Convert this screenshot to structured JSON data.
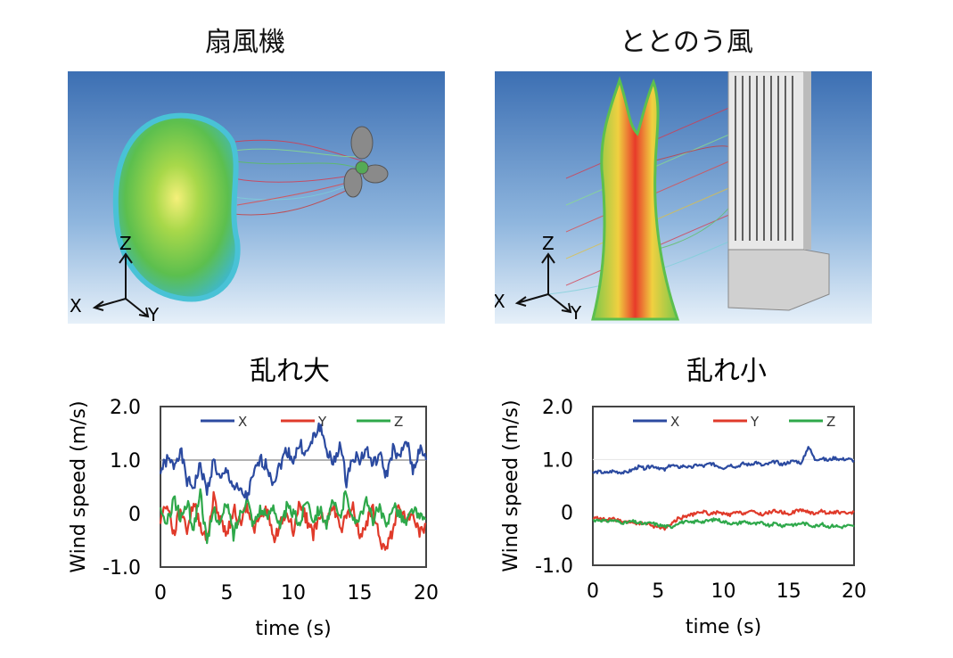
{
  "panels": [
    {
      "title": "扇風機",
      "axes": {
        "z": "Z",
        "x": "X",
        "y": "Y"
      }
    },
    {
      "title": "ととのう風",
      "axes": {
        "z": "Z",
        "x": "X",
        "y": "Y"
      }
    }
  ],
  "colors": {
    "X": "#2b4aa0",
    "Y": "#e03a2a",
    "Z": "#2ea84a"
  },
  "chart_data": [
    {
      "type": "line",
      "title": "乱れ大",
      "xlabel": "time (s)",
      "ylabel": "Wind speed (m/s)",
      "xlim": [
        0,
        20
      ],
      "ylim": [
        -1.0,
        2.0
      ],
      "xticks": [
        "0",
        "5",
        "10",
        "15",
        "20"
      ],
      "yticks": [
        "2.0",
        "1.0",
        "0",
        "-1.0"
      ],
      "grid": "horizontal line at 1.0",
      "legend": "top",
      "x_step": 0.5,
      "series": [
        {
          "name": "X",
          "values": [
            0.8,
            1.0,
            0.9,
            1.2,
            0.6,
            0.5,
            0.9,
            0.4,
            1.0,
            0.6,
            0.8,
            0.5,
            0.4,
            0.3,
            0.7,
            1.0,
            0.9,
            0.6,
            0.9,
            1.2,
            1.0,
            1.3,
            1.1,
            1.4,
            1.65,
            1.2,
            0.9,
            1.3,
            0.6,
            1.1,
            1.0,
            1.2,
            0.9,
            1.1,
            0.7,
            1.2,
            1.0,
            1.4,
            0.8,
            1.2,
            1.0
          ]
        },
        {
          "name": "Y",
          "values": [
            -0.1,
            0.2,
            -0.4,
            0.1,
            -0.3,
            0.2,
            -0.2,
            -0.5,
            0.3,
            -0.1,
            -0.4,
            0.1,
            -0.2,
            0.2,
            -0.3,
            -0.1,
            0.1,
            -0.5,
            -0.2,
            0.0,
            -0.3,
            0.2,
            -0.1,
            -0.4,
            0.0,
            -0.2,
            0.2,
            -0.3,
            -0.1,
            0.1,
            -0.4,
            -0.2,
            0.1,
            -0.5,
            -0.7,
            -0.3,
            0.2,
            -0.2,
            0.1,
            -0.4,
            -0.2
          ]
        },
        {
          "name": "Z",
          "values": [
            0.0,
            -0.2,
            0.3,
            -0.1,
            0.2,
            -0.3,
            0.45,
            -0.6,
            0.1,
            -0.2,
            0.2,
            -0.4,
            0.0,
            0.3,
            -0.2,
            0.1,
            -0.1,
            0.2,
            -0.3,
            0.1,
            0.0,
            -0.2,
            0.3,
            -0.1,
            0.1,
            -0.2,
            0.2,
            -0.1,
            0.45,
            -0.2,
            0.0,
            0.2,
            -0.1,
            0.1,
            -0.3,
            0.2,
            0.0,
            -0.2,
            0.1,
            -0.1,
            -0.1
          ]
        }
      ]
    },
    {
      "type": "line",
      "title": "乱れ小",
      "xlabel": "time (s)",
      "ylabel": "Wind speed (m/s)",
      "xlim": [
        0,
        20
      ],
      "ylim": [
        -1.0,
        2.0
      ],
      "xticks": [
        "0",
        "5",
        "10",
        "15",
        "20"
      ],
      "yticks": [
        "2.0",
        "1.0",
        "0",
        "-1.0"
      ],
      "grid": "none",
      "legend": "top",
      "x_step": 0.5,
      "series": [
        {
          "name": "X",
          "values": [
            0.75,
            0.77,
            0.74,
            0.78,
            0.76,
            0.75,
            0.8,
            0.86,
            0.83,
            0.88,
            0.85,
            0.8,
            0.9,
            0.85,
            0.88,
            0.84,
            0.9,
            0.87,
            0.93,
            0.88,
            0.84,
            0.9,
            0.86,
            0.92,
            0.9,
            0.95,
            0.88,
            0.92,
            0.96,
            0.9,
            0.95,
            0.97,
            0.93,
            1.25,
            1.0,
            1.02,
            0.98,
            1.03,
            1.0,
            1.01,
            0.98
          ]
        },
        {
          "name": "Y",
          "values": [
            -0.12,
            -0.1,
            -0.15,
            -0.12,
            -0.16,
            -0.2,
            -0.18,
            -0.22,
            -0.2,
            -0.25,
            -0.28,
            -0.3,
            -0.22,
            -0.12,
            -0.08,
            -0.05,
            -0.02,
            0.02,
            -0.04,
            0.0,
            -0.03,
            -0.05,
            0.0,
            -0.02,
            0.02,
            -0.01,
            -0.04,
            0.0,
            0.03,
            0.0,
            -0.03,
            0.02,
            0.05,
            0.0,
            -0.02,
            0.03,
            -0.02,
            0.01,
            0.0,
            -0.03,
            0.0
          ]
        },
        {
          "name": "Z",
          "values": [
            -0.15,
            -0.14,
            -0.17,
            -0.15,
            -0.18,
            -0.2,
            -0.17,
            -0.2,
            -0.22,
            -0.2,
            -0.24,
            -0.26,
            -0.28,
            -0.2,
            -0.18,
            -0.2,
            -0.16,
            -0.18,
            -0.15,
            -0.13,
            -0.18,
            -0.2,
            -0.22,
            -0.17,
            -0.2,
            -0.22,
            -0.2,
            -0.24,
            -0.21,
            -0.25,
            -0.22,
            -0.24,
            -0.2,
            -0.23,
            -0.26,
            -0.22,
            -0.27,
            -0.25,
            -0.28,
            -0.25,
            -0.27
          ]
        }
      ]
    }
  ]
}
